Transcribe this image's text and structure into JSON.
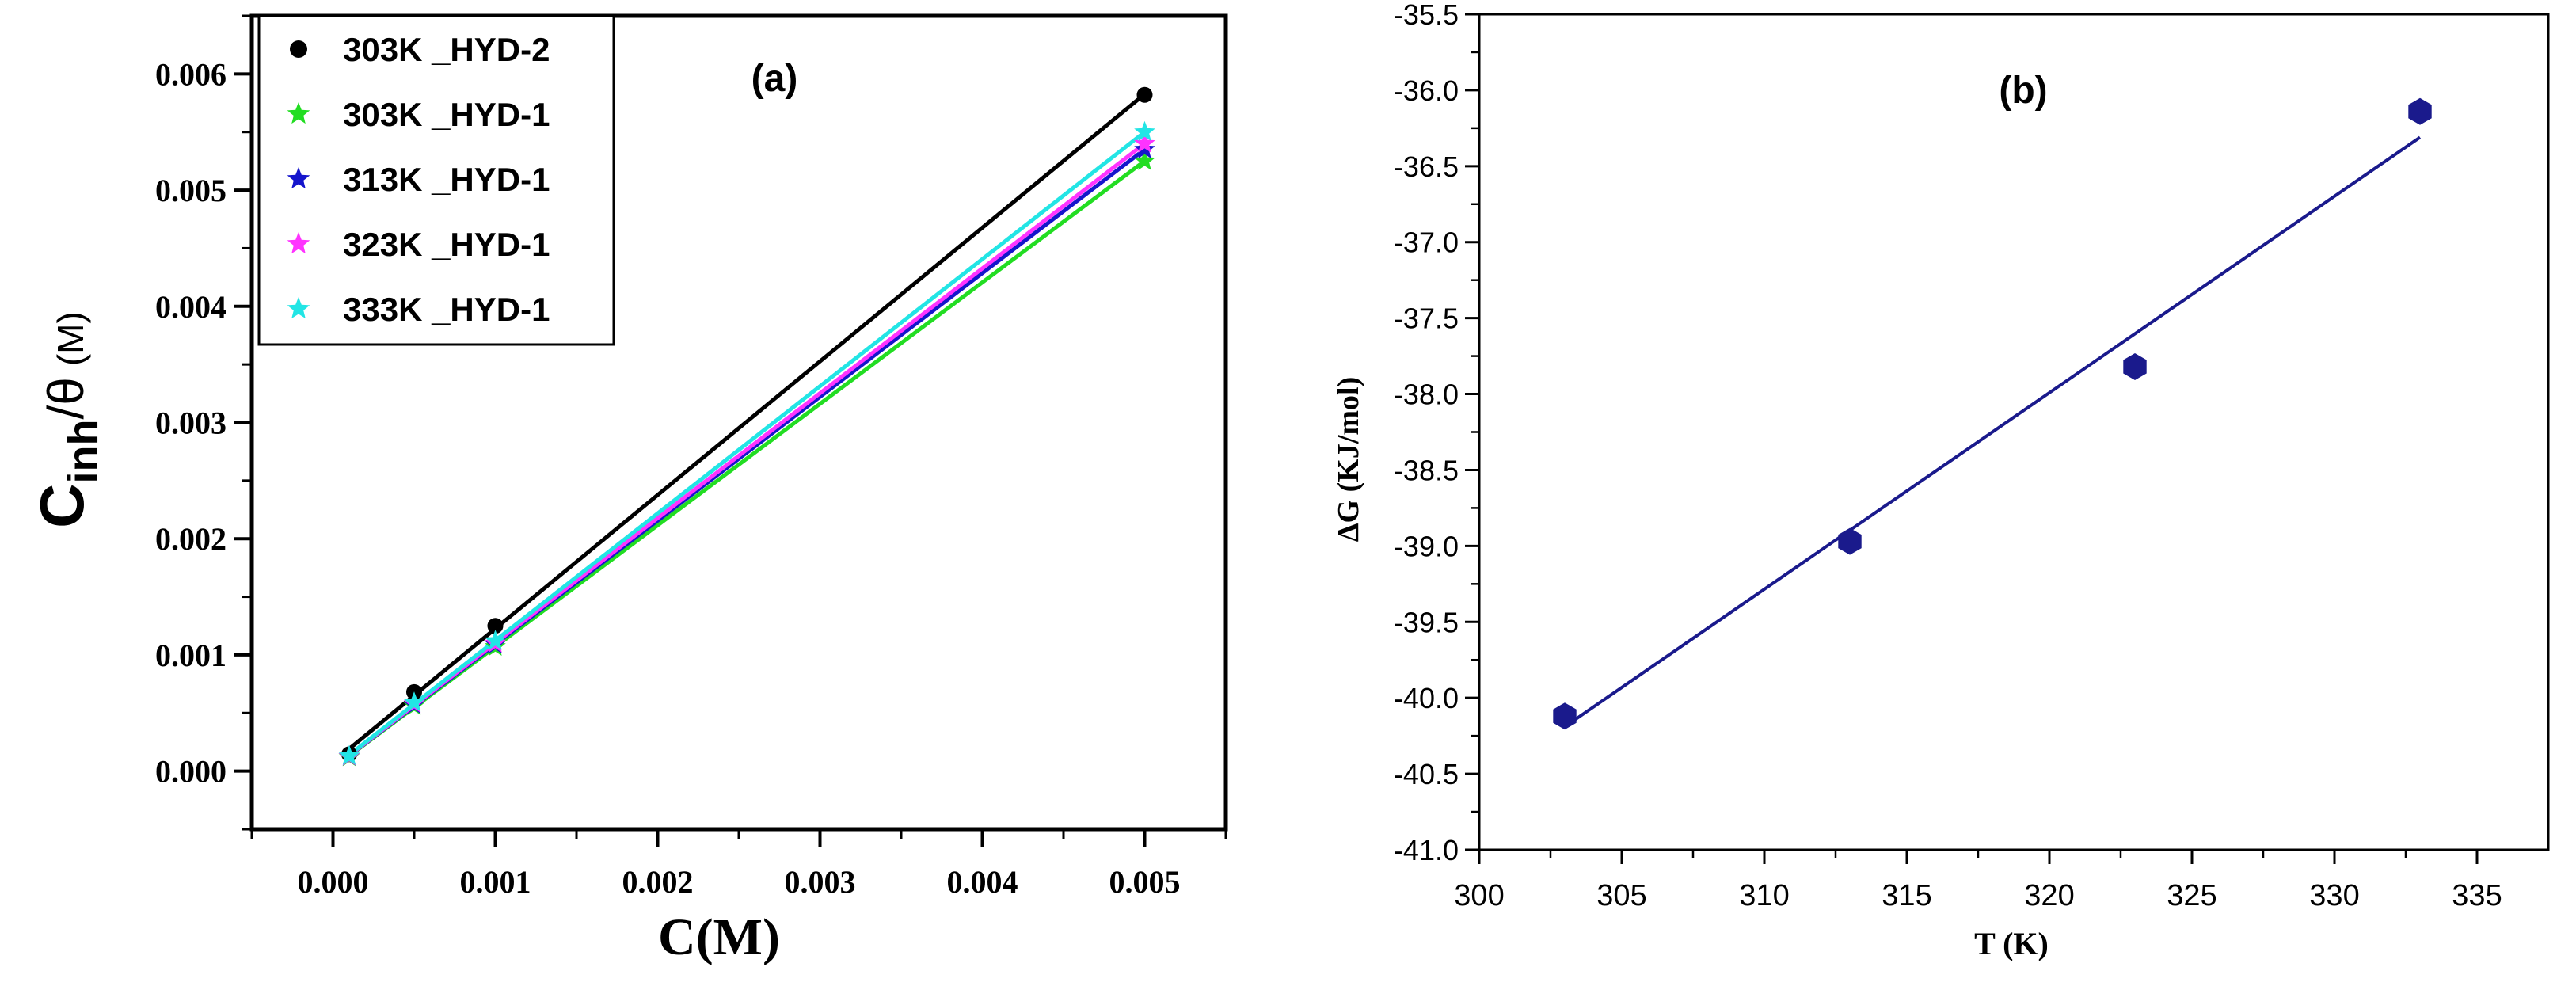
{
  "chart_data": [
    {
      "type": "scatter",
      "panel_label": "(a)",
      "xlabel": "C(M)",
      "ylabel": "Cinh/θ (M)",
      "ylabel_parts": {
        "main": "C",
        "sub": "inh",
        "rest": "/θ",
        "unit": "(M)"
      },
      "xlim": [
        -0.0005,
        0.0055
      ],
      "ylim": [
        -0.0005,
        0.0065
      ],
      "x_ticks": [
        "0.000",
        "0.001",
        "0.002",
        "0.003",
        "0.004",
        "0.005"
      ],
      "x_tick_values": [
        0.0,
        0.001,
        0.002,
        0.003,
        0.004,
        0.005
      ],
      "y_ticks": [
        "0.000",
        "0.001",
        "0.002",
        "0.003",
        "0.004",
        "0.005",
        "0.006"
      ],
      "y_tick_values": [
        0.0,
        0.001,
        0.002,
        0.003,
        0.004,
        0.005,
        0.006
      ],
      "legend_position": "top-left",
      "series": [
        {
          "name": "303K _HYD-2",
          "color": "#000000",
          "marker": "circle",
          "x": [
            0.0001,
            0.0005,
            0.001,
            0.005
          ],
          "y": [
            0.000145,
            0.00068,
            0.00125,
            0.00582
          ]
        },
        {
          "name": "303K _HYD-1",
          "color": "#22dd22",
          "marker": "star",
          "x": [
            0.0001,
            0.0005,
            0.001,
            0.005
          ],
          "y": [
            0.00012,
            0.00056,
            0.00107,
            0.00525
          ]
        },
        {
          "name": "313K _HYD-1",
          "color": "#1515cc",
          "marker": "star",
          "x": [
            0.0001,
            0.0005,
            0.001,
            0.005
          ],
          "y": [
            0.000125,
            0.00057,
            0.00109,
            0.00535
          ]
        },
        {
          "name": "323K _HYD-1",
          "color": "#ff33ff",
          "marker": "star",
          "x": [
            0.0001,
            0.0005,
            0.001,
            0.005
          ],
          "y": [
            0.000125,
            0.00058,
            0.0011,
            0.0054
          ]
        },
        {
          "name": "333K _HYD-1",
          "color": "#22e5e5",
          "marker": "star",
          "x": [
            0.0001,
            0.0005,
            0.001,
            0.005
          ],
          "y": [
            0.00013,
            0.00059,
            0.00112,
            0.0055
          ]
        }
      ]
    },
    {
      "type": "scatter",
      "panel_label": "(b)",
      "xlabel": "T (K)",
      "ylabel": "ΔG (KJ/mol)",
      "xlim": [
        300,
        337.5
      ],
      "ylim": [
        -41.0,
        -35.5
      ],
      "x_ticks": [
        "300",
        "305",
        "310",
        "315",
        "320",
        "325",
        "330",
        "335"
      ],
      "x_tick_values": [
        300,
        305,
        310,
        315,
        320,
        325,
        330,
        335
      ],
      "y_ticks": [
        "-35.5",
        "-36.0",
        "-36.5",
        "-37.0",
        "-37.5",
        "-38.0",
        "-38.5",
        "-39.0",
        "-39.5",
        "-40.0",
        "-40.5",
        "-41.0"
      ],
      "y_tick_values": [
        -35.5,
        -36.0,
        -36.5,
        -37.0,
        -37.5,
        -38.0,
        -38.5,
        -39.0,
        -39.5,
        -40.0,
        -40.5,
        -41.0
      ],
      "series": [
        {
          "name": "ΔG",
          "color": "#1a1a8c",
          "marker": "hexagon",
          "x": [
            303,
            313,
            323,
            333
          ],
          "y": [
            -40.12,
            -38.97,
            -37.82,
            -36.14
          ]
        }
      ],
      "fit": {
        "color": "#1a1a8c",
        "x": [
          303,
          333
        ],
        "y": [
          -40.19,
          -36.31
        ]
      }
    }
  ]
}
